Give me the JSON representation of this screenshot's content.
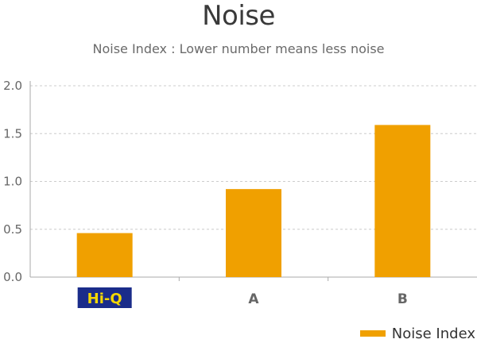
{
  "chart_data": {
    "type": "bar",
    "title": "Noise",
    "subtitle": "Noise Index : Lower number means less noise",
    "categories": [
      "Hi-Q",
      "A",
      "B"
    ],
    "series": [
      {
        "name": "Noise Index",
        "values": [
          0.46,
          0.92,
          1.59
        ]
      }
    ],
    "yticks": [
      "0.0",
      "0.5",
      "1.0",
      "1.5",
      "2.0"
    ],
    "ylim": [
      0,
      2.0
    ],
    "grid": true,
    "legend": "bottom-right",
    "colors": {
      "bar": "#f0a000",
      "grid": "#cccccc",
      "axis": "#aaaaaa",
      "logo_bg": "#1a2c8a",
      "logo_text": "#f5d800"
    }
  }
}
